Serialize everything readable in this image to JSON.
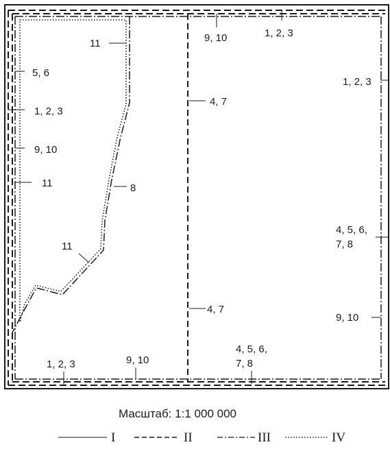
{
  "labels": {
    "top_right_123": "1, 2, 3",
    "top_910": "9, 10",
    "right_123": "1, 2, 3",
    "inner_11_top": "11",
    "left_56": "5, 6",
    "left_123": "1, 2, 3",
    "left_910": "9, 10",
    "left_11": "11",
    "label_8": "8",
    "label_11_diag": "11",
    "mid_47_top": "4, 7",
    "mid_47_bottom": "4, 7",
    "right_45678_l1": "4, 5, 6,",
    "right_45678_l2": "7, 8",
    "right_910": "9, 10",
    "bottom_123": "1, 2, 3",
    "bottom_910": "9, 10",
    "bottom_45678_l1": "4, 5, 6,",
    "bottom_45678_l2": "7, 8"
  },
  "scale_text": "Масштаб: 1:1 000 000",
  "legend": [
    {
      "style": "solid",
      "label": "I"
    },
    {
      "style": "dashed",
      "label": "II"
    },
    {
      "style": "dash-dot",
      "label": "III"
    },
    {
      "style": "dotted",
      "label": "IV"
    }
  ]
}
